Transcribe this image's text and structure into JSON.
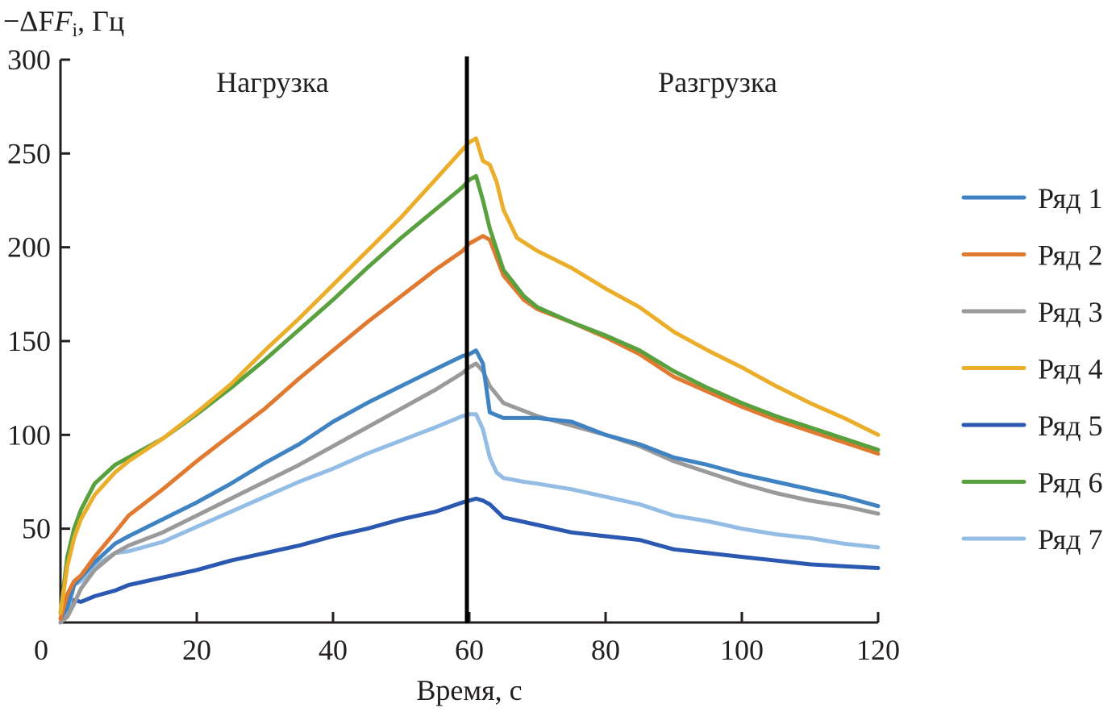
{
  "chart_data": {
    "type": "line",
    "title": "",
    "ylabel": "−ΔF",
    "ylabel_subscript": "i",
    "ylabel_unit": ", Гц",
    "xlabel": "Время, с",
    "xlim": [
      0,
      120
    ],
    "ylim": [
      0,
      300
    ],
    "x_ticks": [
      0,
      20,
      40,
      60,
      80,
      100,
      120
    ],
    "y_ticks": [
      50,
      100,
      150,
      200,
      250,
      300
    ],
    "y_tick_labels": [
      "50",
      "100",
      "150",
      "200",
      "250",
      "300"
    ],
    "x_tick_labels": [
      "0",
      "20",
      "40",
      "60",
      "80",
      "100",
      "120"
    ],
    "grid": false,
    "legend_position": "right",
    "annotations": [
      {
        "text": "Нагрузка",
        "x": 23,
        "y": 285
      },
      {
        "text": "Разгрузка",
        "x": 86,
        "y": 285
      }
    ],
    "divider_x": 60,
    "series": [
      {
        "name": "Ряд 1",
        "color": "#3f83c3",
        "x": [
          0,
          1,
          2,
          3,
          5,
          8,
          10,
          15,
          20,
          25,
          30,
          35,
          40,
          45,
          50,
          55,
          59,
          60,
          61,
          62,
          63,
          65,
          70,
          75,
          80,
          85,
          90,
          95,
          100,
          105,
          110,
          115,
          120
        ],
        "y": [
          2,
          8,
          20,
          24,
          32,
          42,
          46,
          55,
          64,
          74,
          85,
          95,
          107,
          117,
          126,
          135,
          142,
          143,
          145,
          138,
          112,
          109,
          109,
          107,
          100,
          95,
          88,
          84,
          79,
          75,
          71,
          67,
          62
        ]
      },
      {
        "name": "Ряд 2",
        "color": "#e07a30",
        "x": [
          0,
          1,
          2,
          3,
          5,
          8,
          10,
          15,
          20,
          25,
          30,
          35,
          40,
          45,
          50,
          55,
          59,
          60,
          61,
          62,
          63,
          65,
          68,
          70,
          75,
          80,
          85,
          90,
          95,
          100,
          105,
          110,
          115,
          120
        ],
        "y": [
          2,
          15,
          22,
          25,
          35,
          48,
          57,
          71,
          86,
          100,
          114,
          130,
          145,
          160,
          174,
          188,
          198,
          202,
          204,
          206,
          204,
          185,
          172,
          167,
          160,
          152,
          143,
          131,
          123,
          115,
          108,
          102,
          96,
          90
        ]
      },
      {
        "name": "Ряд 3",
        "color": "#9a9a9a",
        "x": [
          0,
          1,
          2,
          3,
          5,
          8,
          10,
          15,
          20,
          25,
          30,
          35,
          40,
          45,
          50,
          55,
          59,
          60,
          61,
          62,
          63,
          65,
          70,
          75,
          80,
          85,
          90,
          95,
          100,
          105,
          110,
          115,
          120
        ],
        "y": [
          0,
          3,
          10,
          18,
          28,
          37,
          41,
          48,
          57,
          66,
          75,
          84,
          94,
          104,
          114,
          124,
          133,
          136,
          138,
          134,
          126,
          117,
          110,
          105,
          100,
          94,
          86,
          80,
          74,
          69,
          65,
          62,
          58
        ]
      },
      {
        "name": "Ряд 4",
        "color": "#eaae2a",
        "x": [
          0,
          1,
          2,
          3,
          5,
          8,
          10,
          15,
          20,
          25,
          30,
          35,
          40,
          45,
          50,
          55,
          59,
          60,
          61,
          62,
          63,
          64,
          65,
          67,
          70,
          75,
          80,
          85,
          90,
          95,
          100,
          105,
          110,
          115,
          120
        ],
        "y": [
          5,
          30,
          45,
          55,
          68,
          80,
          86,
          98,
          112,
          127,
          145,
          162,
          180,
          198,
          216,
          236,
          252,
          256,
          258,
          246,
          244,
          235,
          220,
          205,
          198,
          189,
          178,
          168,
          155,
          145,
          136,
          126,
          117,
          109,
          100
        ]
      },
      {
        "name": "Ряд 5",
        "color": "#2b58b0",
        "x": [
          0,
          1,
          2,
          3,
          5,
          8,
          10,
          15,
          20,
          25,
          30,
          35,
          40,
          45,
          50,
          55,
          59,
          60,
          61,
          62,
          63,
          65,
          70,
          75,
          80,
          85,
          88,
          90,
          95,
          100,
          105,
          110,
          115,
          120
        ],
        "y": [
          0,
          5,
          12,
          11,
          14,
          17,
          20,
          24,
          28,
          33,
          37,
          41,
          46,
          50,
          55,
          59,
          64,
          65,
          66,
          65,
          63,
          56,
          52,
          48,
          46,
          44,
          41,
          39,
          37,
          35,
          33,
          31,
          30,
          29
        ]
      },
      {
        "name": "Ряд 6",
        "color": "#59a03f",
        "x": [
          0,
          1,
          2,
          3,
          5,
          8,
          10,
          15,
          20,
          25,
          30,
          35,
          40,
          45,
          50,
          55,
          59,
          60,
          61,
          62,
          63,
          65,
          68,
          70,
          75,
          80,
          85,
          90,
          95,
          100,
          105,
          110,
          115,
          120
        ],
        "y": [
          5,
          35,
          50,
          60,
          74,
          84,
          88,
          98,
          111,
          125,
          140,
          156,
          172,
          189,
          205,
          220,
          232,
          236,
          238,
          225,
          210,
          188,
          174,
          168,
          160,
          153,
          145,
          134,
          125,
          117,
          110,
          104,
          98,
          92
        ]
      },
      {
        "name": "Ряд 7",
        "color": "#94bde6",
        "x": [
          0,
          1,
          2,
          3,
          5,
          8,
          10,
          15,
          20,
          25,
          30,
          35,
          40,
          45,
          50,
          55,
          59,
          60,
          61,
          62,
          63,
          64,
          65,
          68,
          70,
          75,
          80,
          85,
          90,
          95,
          100,
          105,
          110,
          115,
          120
        ],
        "y": [
          0,
          5,
          20,
          22,
          30,
          37,
          38,
          43,
          51,
          59,
          67,
          75,
          82,
          90,
          97,
          104,
          110,
          111,
          111,
          103,
          88,
          80,
          77,
          75,
          74,
          71,
          67,
          63,
          57,
          54,
          50,
          47,
          45,
          42,
          40
        ]
      }
    ]
  }
}
